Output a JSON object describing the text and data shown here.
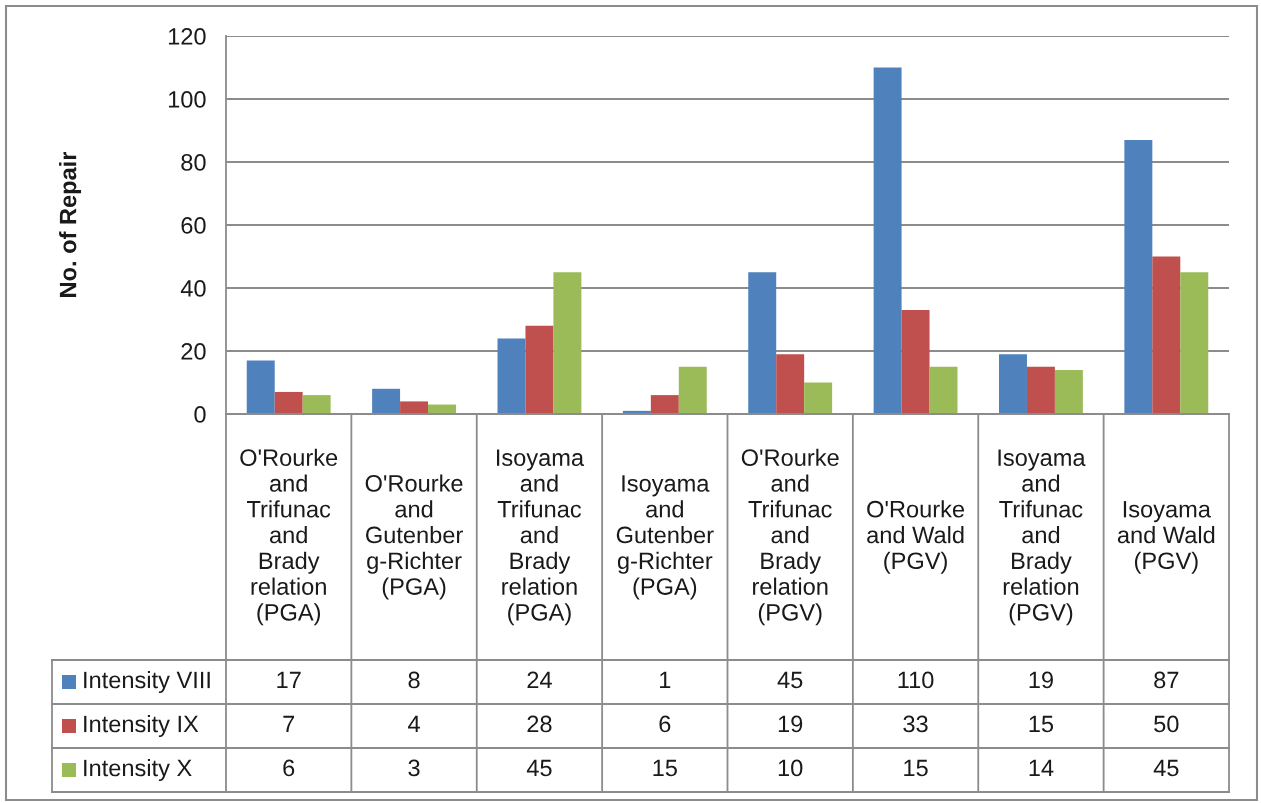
{
  "chart_data": {
    "type": "bar",
    "ylabel": "No. of Repair",
    "categories": [
      "O'Rourke\nand\nTrifunac\nand\nBrady\nrelation\n(PGA)",
      "O'Rourke\nand\nGutenber\ng-Richter\n(PGA)",
      "Isoyama\nand\nTrifunac\nand\nBrady\nrelation\n(PGA)",
      "Isoyama\nand\nGutenber\ng-Richter\n(PGA)",
      "O'Rourke\nand\nTrifunac\nand\nBrady\nrelation\n(PGV)",
      "O'Rourke\nand Wald\n(PGV)",
      "Isoyama\nand\nTrifunac\nand\nBrady\nrelation\n(PGV)",
      "Isoyama\nand Wald\n(PGV)"
    ],
    "series": [
      {
        "name": "Intensity VIII",
        "color": "#4f81bd",
        "values": [
          17,
          8,
          24,
          1,
          45,
          110,
          19,
          87
        ]
      },
      {
        "name": "Intensity IX",
        "color": "#c0504d",
        "values": [
          7,
          4,
          28,
          6,
          19,
          33,
          15,
          50
        ]
      },
      {
        "name": "Intensity X",
        "color": "#9bbb59",
        "values": [
          6,
          3,
          45,
          15,
          10,
          15,
          14,
          45
        ]
      }
    ],
    "ylim": [
      0,
      120
    ],
    "yticks": [
      0,
      20,
      40,
      60,
      80,
      100,
      120
    ],
    "grid": "y",
    "legend": "bottom",
    "data_labels": true
  }
}
